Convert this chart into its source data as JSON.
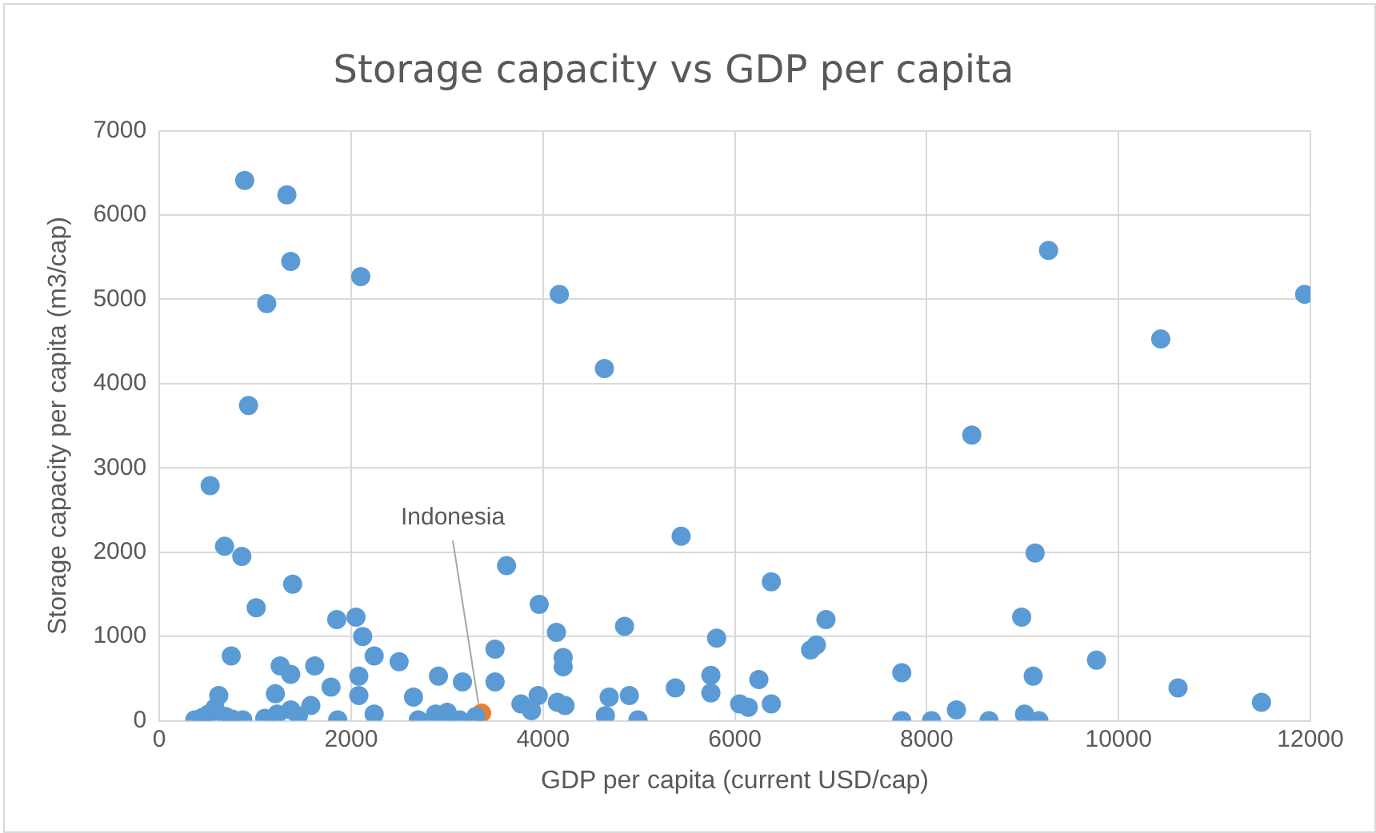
{
  "chart_data": {
    "type": "scatter",
    "title": "Storage capacity vs GDP per capita",
    "xlabel": "GDP per capita (current USD/cap)",
    "ylabel": "Storage capacity per capita (m3/cap)",
    "xlim": [
      0,
      12000
    ],
    "xticks": [
      0,
      2000,
      4000,
      6000,
      8000,
      10000,
      12000
    ],
    "ylim": [
      0,
      7000
    ],
    "yticks": [
      0,
      1000,
      2000,
      3000,
      4000,
      5000,
      6000,
      7000
    ],
    "grid": true,
    "legend": false,
    "marker": "circle",
    "annotations": [
      {
        "text": "Indonesia",
        "x": 3360,
        "y": 90
      }
    ],
    "series": [
      {
        "color": "#5b9bd5",
        "x": [
          890,
          1330,
          1370,
          2100,
          1120,
          930,
          530,
          680,
          860,
          1390,
          3620,
          1010,
          3960,
          1850,
          2050,
          2120,
          4140,
          750,
          2240,
          2500,
          3500,
          1260,
          1620,
          1370,
          2910,
          3160,
          3500,
          1790,
          2080,
          620,
          1210,
          2080,
          2650,
          370,
          515,
          690,
          870,
          1230,
          1370,
          1580,
          1860,
          2240,
          2700,
          2880,
          3130,
          3770,
          3880,
          3950,
          4150,
          4170,
          4640,
          5440,
          6380,
          4850,
          5810,
          6950,
          6850,
          6790,
          4210,
          4210,
          4230,
          4690,
          4900,
          4650,
          4990,
          5380,
          5750,
          5750,
          6050,
          6140,
          6250,
          6380,
          7740,
          7740,
          8050,
          8310,
          8470,
          9270,
          11940,
          10440,
          9130,
          8990,
          9110,
          9770,
          10620,
          11490,
          8650,
          9020,
          9170,
          450,
          580,
          760,
          1100,
          1450,
          3000,
          3300
        ],
        "values": [
          6410,
          6240,
          5450,
          5270,
          4950,
          3740,
          2790,
          2070,
          1950,
          1620,
          1840,
          1340,
          1380,
          1200,
          1230,
          1000,
          1050,
          770,
          770,
          700,
          850,
          650,
          650,
          550,
          530,
          460,
          460,
          400,
          530,
          300,
          320,
          300,
          280,
          10,
          80,
          50,
          10,
          80,
          130,
          180,
          10,
          80,
          10,
          80,
          10,
          200,
          120,
          300,
          220,
          5060,
          4180,
          2190,
          1650,
          1120,
          980,
          1200,
          900,
          840,
          750,
          640,
          180,
          280,
          300,
          60,
          10,
          390,
          540,
          330,
          200,
          160,
          490,
          200,
          570,
          0,
          0,
          130,
          3390,
          5580,
          5060,
          4530,
          1990,
          1230,
          530,
          720,
          390,
          220,
          0,
          80,
          0,
          40,
          150,
          20,
          30,
          60,
          100,
          50
        ]
      },
      {
        "color": "#ed7d31",
        "x": [
          3360
        ],
        "values": [
          90
        ]
      }
    ]
  }
}
